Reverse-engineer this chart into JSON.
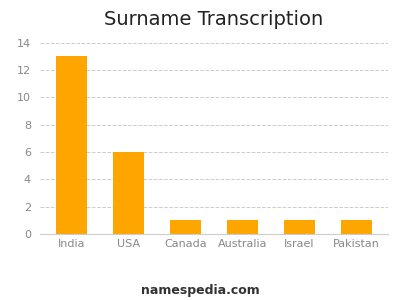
{
  "title": "Surname Transcription",
  "categories": [
    "India",
    "USA",
    "Canada",
    "Australia",
    "Israel",
    "Pakistan"
  ],
  "values": [
    13,
    6,
    1,
    1,
    1,
    1
  ],
  "bar_color": "#FFA500",
  "background_color": "#ffffff",
  "ylim": [
    0,
    14.5
  ],
  "yticks": [
    0,
    2,
    4,
    6,
    8,
    10,
    12,
    14
  ],
  "footer_text": "namespedia.com",
  "title_fontsize": 14,
  "tick_fontsize": 8,
  "footer_fontsize": 9,
  "grid_color": "#cccccc",
  "grid_linestyle": "--",
  "bar_width": 0.55
}
